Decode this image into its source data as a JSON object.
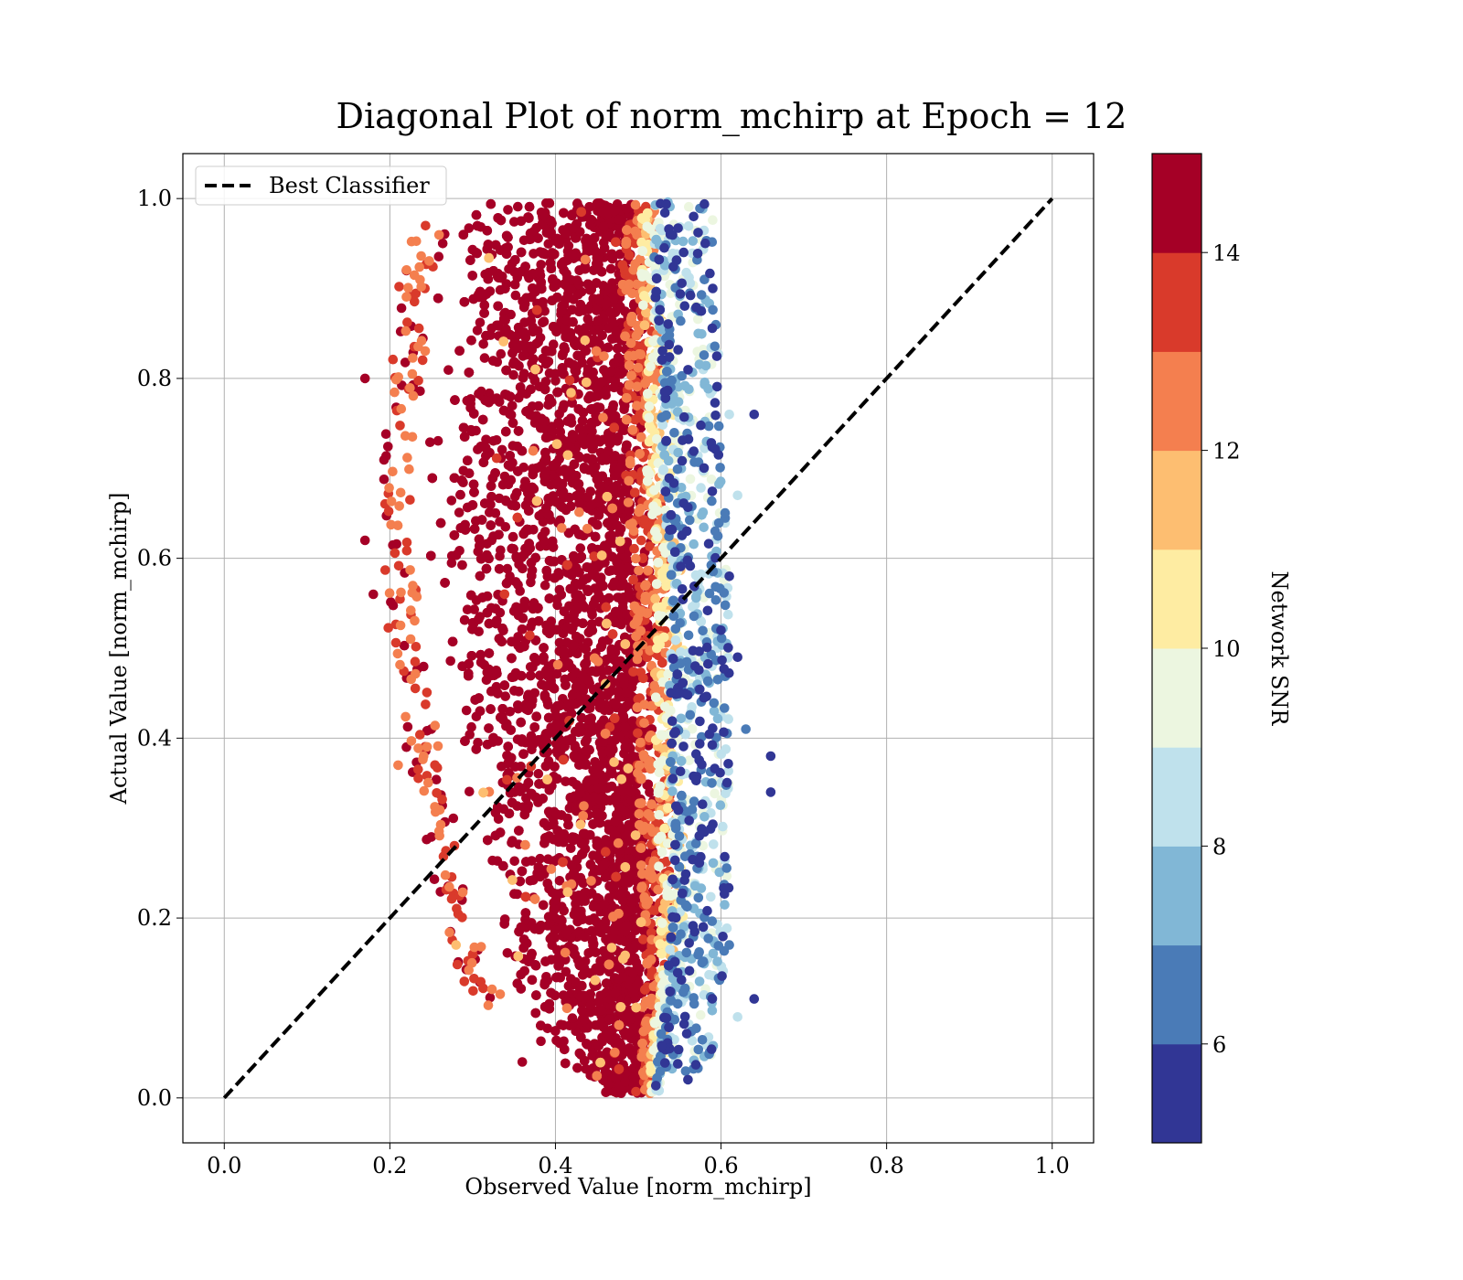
{
  "chart_data": {
    "type": "scatter",
    "title": "Diagonal Plot of norm_mchirp at Epoch = 12",
    "xlabel": "Observed Value [norm_mchirp]",
    "ylabel": "Actual Value [norm_mchirp]",
    "xlim": [
      -0.05,
      1.05
    ],
    "ylim": [
      -0.05,
      1.05
    ],
    "xticks": [
      "0.0",
      "0.2",
      "0.4",
      "0.6",
      "0.8",
      "1.0"
    ],
    "yticks": [
      "0.0",
      "0.2",
      "0.4",
      "0.6",
      "0.8",
      "1.0"
    ],
    "grid": true,
    "legend": {
      "placement": "top-left",
      "entries": [
        "Best Classifier"
      ]
    },
    "reference_line": {
      "name": "Best Classifier",
      "style": "dashed",
      "color": "#000000",
      "x": [
        0.0,
        1.0
      ],
      "y": [
        0.0,
        1.0
      ]
    },
    "colorbar": {
      "label": "Network SNR",
      "range": [
        5,
        15
      ],
      "ticks": [
        "6",
        "8",
        "10",
        "12",
        "14"
      ],
      "bins": [
        {
          "from": 5,
          "to": 6,
          "color": "#313695"
        },
        {
          "from": 6,
          "to": 7,
          "color": "#4a7bb7"
        },
        {
          "from": 7,
          "to": 8,
          "color": "#81b7d6"
        },
        {
          "from": 8,
          "to": 9,
          "color": "#bfe1ec"
        },
        {
          "from": 9,
          "to": 10,
          "color": "#ecf6e0"
        },
        {
          "from": 10,
          "to": 11,
          "color": "#feeca2"
        },
        {
          "from": 11,
          "to": 12,
          "color": "#fdbe71"
        },
        {
          "from": 12,
          "to": 13,
          "color": "#f47f4f"
        },
        {
          "from": 13,
          "to": 14,
          "color": "#d93a2b"
        },
        {
          "from": 14,
          "to": 15,
          "color": "#a50026"
        }
      ]
    },
    "cloud_profile": {
      "description": "approximate horizontal extent of the dense point cloud per actual-value level",
      "y": [
        0.0,
        0.05,
        0.1,
        0.2,
        0.3,
        0.4,
        0.5,
        0.6,
        0.7,
        0.8,
        0.9,
        1.0
      ],
      "x_left": [
        0.45,
        0.38,
        0.34,
        0.3,
        0.28,
        0.26,
        0.24,
        0.23,
        0.23,
        0.24,
        0.25,
        0.28
      ],
      "x_right": [
        0.52,
        0.53,
        0.54,
        0.55,
        0.55,
        0.55,
        0.55,
        0.55,
        0.54,
        0.54,
        0.53,
        0.53
      ]
    },
    "outliers": [
      {
        "x": 0.17,
        "y": 0.8,
        "snr": 14.5
      },
      {
        "x": 0.18,
        "y": 0.56,
        "snr": 14.5
      },
      {
        "x": 0.17,
        "y": 0.62,
        "snr": 14.5
      },
      {
        "x": 0.22,
        "y": 0.92,
        "snr": 14.5
      },
      {
        "x": 0.66,
        "y": 0.38,
        "snr": 5.5
      },
      {
        "x": 0.66,
        "y": 0.34,
        "snr": 5.5
      },
      {
        "x": 0.64,
        "y": 0.76,
        "snr": 5.5
      },
      {
        "x": 0.64,
        "y": 0.11,
        "snr": 5.5
      },
      {
        "x": 0.63,
        "y": 0.41,
        "snr": 6.5
      },
      {
        "x": 0.62,
        "y": 0.67,
        "snr": 8.5
      },
      {
        "x": 0.62,
        "y": 0.09,
        "snr": 8.5
      },
      {
        "x": 0.59,
        "y": 0.9,
        "snr": 5.5
      },
      {
        "x": 0.58,
        "y": 0.91,
        "snr": 6.5
      },
      {
        "x": 0.61,
        "y": 0.58,
        "snr": 5.5
      },
      {
        "x": 0.61,
        "y": 0.76,
        "snr": 8.5
      },
      {
        "x": 0.6,
        "y": 0.52,
        "snr": 5.5
      },
      {
        "x": 0.62,
        "y": 0.49,
        "snr": 5.5
      },
      {
        "x": 0.61,
        "y": 0.17,
        "snr": 6.5
      },
      {
        "x": 0.28,
        "y": 0.17,
        "snr": 11.5
      },
      {
        "x": 0.36,
        "y": 0.04,
        "snr": 14.5
      },
      {
        "x": 0.21,
        "y": 0.37,
        "snr": 12.5
      },
      {
        "x": 0.22,
        "y": 0.39,
        "snr": 14.5
      }
    ]
  }
}
